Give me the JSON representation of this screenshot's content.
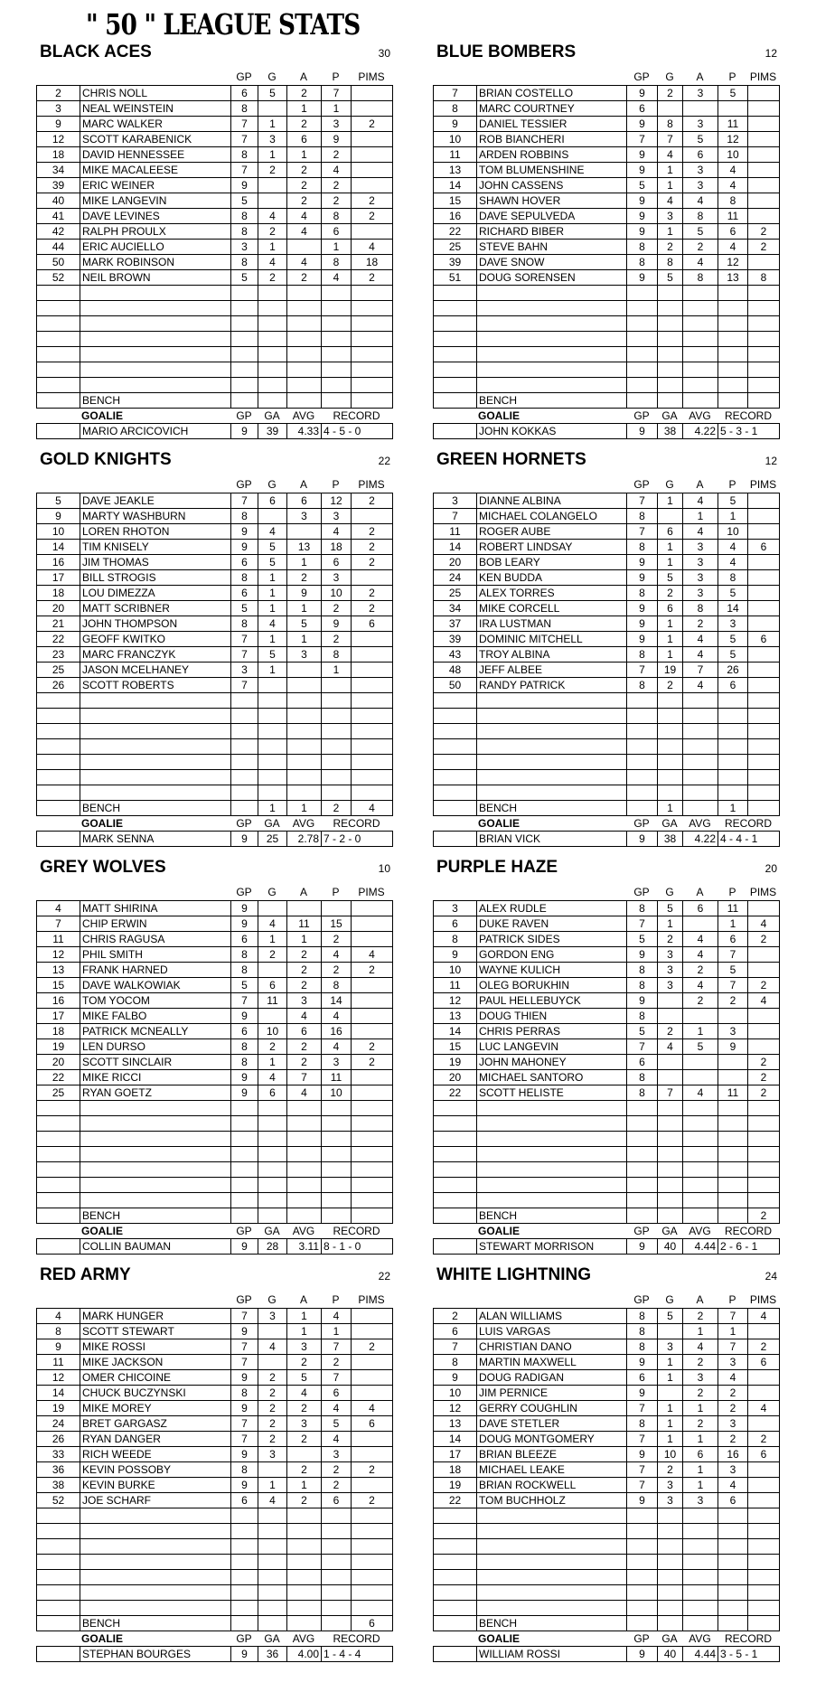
{
  "title": "\" 50 \" LEAGUE STATS",
  "headers": {
    "gp": "GP",
    "g": "G",
    "a": "A",
    "p": "P",
    "pims": "PIMS",
    "bench": "BENCH",
    "goalie": "GOALIE",
    "ga": "GA",
    "avg": "AVG",
    "record": "RECORD"
  },
  "teams": [
    {
      "name": "BLACK ACES",
      "number": "30",
      "players": [
        [
          "2",
          "CHRIS NOLL",
          "6",
          "5",
          "2",
          "7",
          ""
        ],
        [
          "3",
          "NEAL WEINSTEIN",
          "8",
          "",
          "1",
          "1",
          ""
        ],
        [
          "9",
          "MARC WALKER",
          "7",
          "1",
          "2",
          "3",
          "2"
        ],
        [
          "12",
          "SCOTT KARABENICK",
          "7",
          "3",
          "6",
          "9",
          ""
        ],
        [
          "18",
          "DAVID HENNESSEE",
          "8",
          "1",
          "1",
          "2",
          ""
        ],
        [
          "34",
          "MIKE MACALEESE",
          "7",
          "2",
          "2",
          "4",
          ""
        ],
        [
          "39",
          "ERIC WEINER",
          "9",
          "",
          "2",
          "2",
          ""
        ],
        [
          "40",
          "MIKE LANGEVIN",
          "5",
          "",
          "2",
          "2",
          "2"
        ],
        [
          "41",
          "DAVE LEVINES",
          "8",
          "4",
          "4",
          "8",
          "2"
        ],
        [
          "42",
          "RALPH PROULX",
          "8",
          "2",
          "4",
          "6",
          ""
        ],
        [
          "44",
          "ERIC AUCIELLO",
          "3",
          "1",
          "",
          "1",
          "4"
        ],
        [
          "50",
          "MARK ROBINSON",
          "8",
          "4",
          "4",
          "8",
          "18"
        ],
        [
          "52",
          "NEIL BROWN",
          "5",
          "2",
          "2",
          "4",
          "2"
        ]
      ],
      "bench": [
        "",
        "",
        "",
        "",
        ""
      ],
      "goalie": {
        "name": "MARIO ARCICOVICH",
        "gp": "9",
        "ga": "39",
        "avg": "4.33",
        "record": "4 - 5 - 0"
      }
    },
    {
      "name": "BLUE BOMBERS",
      "number": "12",
      "players": [
        [
          "7",
          "BRIAN COSTELLO",
          "9",
          "2",
          "3",
          "5",
          ""
        ],
        [
          "8",
          "MARC COURTNEY",
          "6",
          "",
          "",
          "",
          ""
        ],
        [
          "9",
          "DANIEL TESSIER",
          "9",
          "8",
          "3",
          "11",
          ""
        ],
        [
          "10",
          "ROB BIANCHERI",
          "7",
          "7",
          "5",
          "12",
          ""
        ],
        [
          "11",
          "ARDEN ROBBINS",
          "9",
          "4",
          "6",
          "10",
          ""
        ],
        [
          "13",
          "TOM BLUMENSHINE",
          "9",
          "1",
          "3",
          "4",
          ""
        ],
        [
          "14",
          "JOHN CASSENS",
          "5",
          "1",
          "3",
          "4",
          ""
        ],
        [
          "15",
          "SHAWN HOVER",
          "9",
          "4",
          "4",
          "8",
          ""
        ],
        [
          "16",
          "DAVE SEPULVEDA",
          "9",
          "3",
          "8",
          "11",
          ""
        ],
        [
          "22",
          "RICHARD BIBER",
          "9",
          "1",
          "5",
          "6",
          "2"
        ],
        [
          "25",
          "STEVE BAHN",
          "8",
          "2",
          "2",
          "4",
          "2"
        ],
        [
          "39",
          "DAVE SNOW",
          "8",
          "8",
          "4",
          "12",
          ""
        ],
        [
          "51",
          "DOUG SORENSEN",
          "9",
          "5",
          "8",
          "13",
          "8"
        ]
      ],
      "bench": [
        "",
        "",
        "",
        "",
        ""
      ],
      "goalie": {
        "name": "JOHN KOKKAS",
        "gp": "9",
        "ga": "38",
        "avg": "4.22",
        "record": "5 - 3 - 1"
      }
    },
    {
      "name": "GOLD KNIGHTS",
      "number": "22",
      "players": [
        [
          "5",
          "DAVE JEAKLE",
          "7",
          "6",
          "6",
          "12",
          "2"
        ],
        [
          "9",
          "MARTY WASHBURN",
          "8",
          "",
          "3",
          "3",
          ""
        ],
        [
          "10",
          "LOREN RHOTON",
          "9",
          "4",
          "",
          "4",
          "2"
        ],
        [
          "14",
          "TIM KNISELY",
          "9",
          "5",
          "13",
          "18",
          "2"
        ],
        [
          "16",
          "JIM THOMAS",
          "6",
          "5",
          "1",
          "6",
          "2"
        ],
        [
          "17",
          "BILL STROGIS",
          "8",
          "1",
          "2",
          "3",
          ""
        ],
        [
          "18",
          "LOU DIMEZZA",
          "6",
          "1",
          "9",
          "10",
          "2"
        ],
        [
          "20",
          "MATT SCRIBNER",
          "5",
          "1",
          "1",
          "2",
          "2"
        ],
        [
          "21",
          "JOHN THOMPSON",
          "8",
          "4",
          "5",
          "9",
          "6"
        ],
        [
          "22",
          "GEOFF KWITKO",
          "7",
          "1",
          "1",
          "2",
          ""
        ],
        [
          "23",
          "MARC FRANCZYK",
          "7",
          "5",
          "3",
          "8",
          ""
        ],
        [
          "25",
          "JASON MCELHANEY",
          "3",
          "1",
          "",
          "1",
          ""
        ],
        [
          "26",
          "SCOTT ROBERTS",
          "7",
          "",
          "",
          "",
          ""
        ]
      ],
      "bench": [
        "",
        "1",
        "1",
        "2",
        "4"
      ],
      "goalie": {
        "name": "MARK SENNA",
        "gp": "9",
        "ga": "25",
        "avg": "2.78",
        "record": "7 - 2 - 0"
      }
    },
    {
      "name": "GREEN HORNETS",
      "number": "12",
      "players": [
        [
          "3",
          "DIANNE ALBINA",
          "7",
          "1",
          "4",
          "5",
          ""
        ],
        [
          "7",
          "MICHAEL COLANGELO",
          "8",
          "",
          "1",
          "1",
          ""
        ],
        [
          "11",
          "ROGER AUBE",
          "7",
          "6",
          "4",
          "10",
          ""
        ],
        [
          "14",
          "ROBERT LINDSAY",
          "8",
          "1",
          "3",
          "4",
          "6"
        ],
        [
          "20",
          "BOB LEARY",
          "9",
          "1",
          "3",
          "4",
          ""
        ],
        [
          "24",
          "KEN BUDDA",
          "9",
          "5",
          "3",
          "8",
          ""
        ],
        [
          "25",
          "ALEX TORRES",
          "8",
          "2",
          "3",
          "5",
          ""
        ],
        [
          "34",
          "MIKE CORCELL",
          "9",
          "6",
          "8",
          "14",
          ""
        ],
        [
          "37",
          "IRA LUSTMAN",
          "9",
          "1",
          "2",
          "3",
          ""
        ],
        [
          "39",
          "DOMINIC MITCHELL",
          "9",
          "1",
          "4",
          "5",
          "6"
        ],
        [
          "43",
          "TROY ALBINA",
          "8",
          "1",
          "4",
          "5",
          ""
        ],
        [
          "48",
          "JEFF ALBEE",
          "7",
          "19",
          "7",
          "26",
          ""
        ],
        [
          "50",
          "RANDY PATRICK",
          "8",
          "2",
          "4",
          "6",
          ""
        ]
      ],
      "bench": [
        "",
        "1",
        "",
        "1",
        ""
      ],
      "goalie": {
        "name": "BRIAN VICK",
        "gp": "9",
        "ga": "38",
        "avg": "4.22",
        "record": "4 - 4 - 1"
      }
    },
    {
      "name": "GREY WOLVES",
      "number": "10",
      "players": [
        [
          "4",
          "MATT SHIRINA",
          "9",
          "",
          "",
          "",
          ""
        ],
        [
          "7",
          "CHIP ERWIN",
          "9",
          "4",
          "11",
          "15",
          ""
        ],
        [
          "11",
          "CHRIS RAGUSA",
          "6",
          "1",
          "1",
          "2",
          ""
        ],
        [
          "12",
          "PHIL SMITH",
          "8",
          "2",
          "2",
          "4",
          "4"
        ],
        [
          "13",
          "FRANK HARNED",
          "8",
          "",
          "2",
          "2",
          "2"
        ],
        [
          "15",
          "DAVE WALKOWIAK",
          "5",
          "6",
          "2",
          "8",
          ""
        ],
        [
          "16",
          "TOM YOCOM",
          "7",
          "11",
          "3",
          "14",
          ""
        ],
        [
          "17",
          "MIKE FALBO",
          "9",
          "",
          "4",
          "4",
          ""
        ],
        [
          "18",
          "PATRICK MCNEALLY",
          "6",
          "10",
          "6",
          "16",
          ""
        ],
        [
          "19",
          "LEN DURSO",
          "8",
          "2",
          "2",
          "4",
          "2"
        ],
        [
          "20",
          "SCOTT SINCLAIR",
          "8",
          "1",
          "2",
          "3",
          "2"
        ],
        [
          "22",
          "MIKE RICCI",
          "9",
          "4",
          "7",
          "11",
          ""
        ],
        [
          "25",
          "RYAN GOETZ",
          "9",
          "6",
          "4",
          "10",
          ""
        ]
      ],
      "bench": [
        "",
        "",
        "",
        "",
        ""
      ],
      "goalie": {
        "name": "COLLIN BAUMAN",
        "gp": "9",
        "ga": "28",
        "avg": "3.11",
        "record": "8 - 1 - 0"
      }
    },
    {
      "name": "PURPLE HAZE",
      "number": "20",
      "players": [
        [
          "3",
          "ALEX RUDLE",
          "8",
          "5",
          "6",
          "11",
          ""
        ],
        [
          "6",
          "DUKE RAVEN",
          "7",
          "1",
          "",
          "1",
          "4"
        ],
        [
          "8",
          "PATRICK SIDES",
          "5",
          "2",
          "4",
          "6",
          "2"
        ],
        [
          "9",
          "GORDON ENG",
          "9",
          "3",
          "4",
          "7",
          ""
        ],
        [
          "10",
          "WAYNE KULICH",
          "8",
          "3",
          "2",
          "5",
          ""
        ],
        [
          "11",
          "OLEG BORUKHIN",
          "8",
          "3",
          "4",
          "7",
          "2"
        ],
        [
          "12",
          "PAUL HELLEBUYCK",
          "9",
          "",
          "2",
          "2",
          "4"
        ],
        [
          "13",
          "DOUG THIEN",
          "8",
          "",
          "",
          "",
          ""
        ],
        [
          "14",
          "CHRIS PERRAS",
          "5",
          "2",
          "1",
          "3",
          ""
        ],
        [
          "15",
          "LUC LANGEVIN",
          "7",
          "4",
          "5",
          "9",
          ""
        ],
        [
          "19",
          "JOHN MAHONEY",
          "6",
          "",
          "",
          "",
          "2"
        ],
        [
          "20",
          "MICHAEL SANTORO",
          "8",
          "",
          "",
          "",
          "2"
        ],
        [
          "22",
          "SCOTT HELISTE",
          "8",
          "7",
          "4",
          "11",
          "2"
        ]
      ],
      "bench": [
        "",
        "",
        "",
        "",
        "2"
      ],
      "goalie": {
        "name": "STEWART MORRISON",
        "gp": "9",
        "ga": "40",
        "avg": "4.44",
        "record": "2 - 6 - 1"
      }
    },
    {
      "name": "RED ARMY",
      "number": "22",
      "players": [
        [
          "4",
          "MARK HUNGER",
          "7",
          "3",
          "1",
          "4",
          ""
        ],
        [
          "8",
          "SCOTT STEWART",
          "9",
          "",
          "1",
          "1",
          ""
        ],
        [
          "9",
          "MIKE ROSSI",
          "7",
          "4",
          "3",
          "7",
          "2"
        ],
        [
          "11",
          "MIKE JACKSON",
          "7",
          "",
          "2",
          "2",
          ""
        ],
        [
          "12",
          "OMER CHICOINE",
          "9",
          "2",
          "5",
          "7",
          ""
        ],
        [
          "14",
          "CHUCK BUCZYNSKI",
          "8",
          "2",
          "4",
          "6",
          ""
        ],
        [
          "19",
          "MIKE MOREY",
          "9",
          "2",
          "2",
          "4",
          "4"
        ],
        [
          "24",
          "BRET GARGASZ",
          "7",
          "2",
          "3",
          "5",
          "6"
        ],
        [
          "26",
          "RYAN DANGER",
          "7",
          "2",
          "2",
          "4",
          ""
        ],
        [
          "33",
          "RICH WEEDE",
          "9",
          "3",
          "",
          "3",
          ""
        ],
        [
          "36",
          "KEVIN POSSOBY",
          "8",
          "",
          "2",
          "2",
          "2"
        ],
        [
          "38",
          "KEVIN BURKE",
          "9",
          "1",
          "1",
          "2",
          ""
        ],
        [
          "52",
          "JOE SCHARF",
          "6",
          "4",
          "2",
          "6",
          "2"
        ]
      ],
      "bench": [
        "",
        "",
        "",
        "",
        "6"
      ],
      "goalie": {
        "name": "STEPHAN BOURGES",
        "gp": "9",
        "ga": "36",
        "avg": "4.00",
        "record": "1 - 4 - 4"
      }
    },
    {
      "name": "WHITE LIGHTNING",
      "number": "24",
      "players": [
        [
          "2",
          "ALAN WILLIAMS",
          "8",
          "5",
          "2",
          "7",
          "4"
        ],
        [
          "6",
          "LUIS VARGAS",
          "8",
          "",
          "1",
          "1",
          ""
        ],
        [
          "7",
          "CHRISTIAN DANO",
          "8",
          "3",
          "4",
          "7",
          "2"
        ],
        [
          "8",
          "MARTIN MAXWELL",
          "9",
          "1",
          "2",
          "3",
          "6"
        ],
        [
          "9",
          "DOUG RADIGAN",
          "6",
          "1",
          "3",
          "4",
          ""
        ],
        [
          "10",
          "JIM PERNICE",
          "9",
          "",
          "2",
          "2",
          ""
        ],
        [
          "12",
          "GERRY COUGHLIN",
          "7",
          "1",
          "1",
          "2",
          "4"
        ],
        [
          "13",
          "DAVE STETLER",
          "8",
          "1",
          "2",
          "3",
          ""
        ],
        [
          "14",
          "DOUG MONTGOMERY",
          "7",
          "1",
          "1",
          "2",
          "2"
        ],
        [
          "17",
          "BRIAN BLEEZE",
          "9",
          "10",
          "6",
          "16",
          "6"
        ],
        [
          "18",
          "MICHAEL LEAKE",
          "7",
          "2",
          "1",
          "3",
          ""
        ],
        [
          "19",
          "BRIAN ROCKWELL",
          "7",
          "3",
          "1",
          "4",
          ""
        ],
        [
          "22",
          "TOM BUCHHOLZ",
          "9",
          "3",
          "3",
          "6",
          ""
        ]
      ],
      "bench": [
        "",
        "",
        "",
        "",
        ""
      ],
      "goalie": {
        "name": "WILLIAM ROSSI",
        "gp": "9",
        "ga": "40",
        "avg": "4.44",
        "record": "3 - 5 - 1"
      }
    }
  ]
}
